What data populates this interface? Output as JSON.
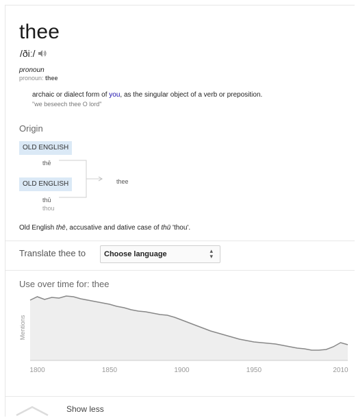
{
  "entry": {
    "word": "thee",
    "pronunciation": "/ðiː/",
    "part_of_speech": "pronoun",
    "pos_label": "pronoun:",
    "pos_word": "thee",
    "definition_before": "archaic or dialect form of ",
    "definition_link": "you",
    "definition_after": ", as the singular object of a verb or preposition.",
    "example": "\"we beseech thee O lord\""
  },
  "origin": {
    "title": "Origin",
    "tags": [
      "OLD ENGLISH",
      "OLD ENGLISH"
    ],
    "words": [
      "thē",
      "thū",
      "thou",
      "thee"
    ],
    "etym_prefix": "Old English ",
    "etym_word": "thē",
    "etym_middle": ", accusative and dative case of ",
    "etym_word2": "thū",
    "etym_suffix": " 'thou'."
  },
  "translate": {
    "label": "Translate thee to",
    "select_value": "Choose language"
  },
  "usage": {
    "title": "Use over time for: thee"
  },
  "footer": {
    "show_less": "Show less"
  },
  "colors": {
    "tag_bg": "#dbe9f6",
    "link": "#1a0dab",
    "chart_fill": "#eeeeee",
    "chart_line": "#888888"
  },
  "chart_data": {
    "type": "area",
    "ylabel": "Mentions",
    "xlabel": "",
    "title": "Use over time for: thee",
    "x_ticks": [
      1800,
      1850,
      1900,
      1950,
      2010
    ],
    "xlim": [
      1795,
      2015
    ],
    "ylim": [
      0,
      100
    ],
    "x": [
      1795,
      1800,
      1805,
      1810,
      1815,
      1820,
      1825,
      1830,
      1835,
      1840,
      1845,
      1850,
      1855,
      1860,
      1865,
      1870,
      1875,
      1880,
      1885,
      1890,
      1895,
      1900,
      1905,
      1910,
      1915,
      1920,
      1925,
      1930,
      1935,
      1940,
      1945,
      1950,
      1955,
      1960,
      1965,
      1970,
      1975,
      1980,
      1985,
      1990,
      1995,
      2000,
      2005,
      2010,
      2015
    ],
    "series": [
      {
        "values": [
          88,
          93,
          89,
          92,
          91,
          94,
          93,
          90,
          88,
          86,
          84,
          82,
          79,
          77,
          74,
          72,
          71,
          69,
          67,
          66,
          63,
          59,
          55,
          51,
          47,
          43,
          40,
          37,
          34,
          31,
          29,
          27,
          26,
          25,
          24,
          22,
          20,
          18,
          17,
          15,
          15,
          16,
          20,
          26,
          23
        ]
      }
    ]
  }
}
